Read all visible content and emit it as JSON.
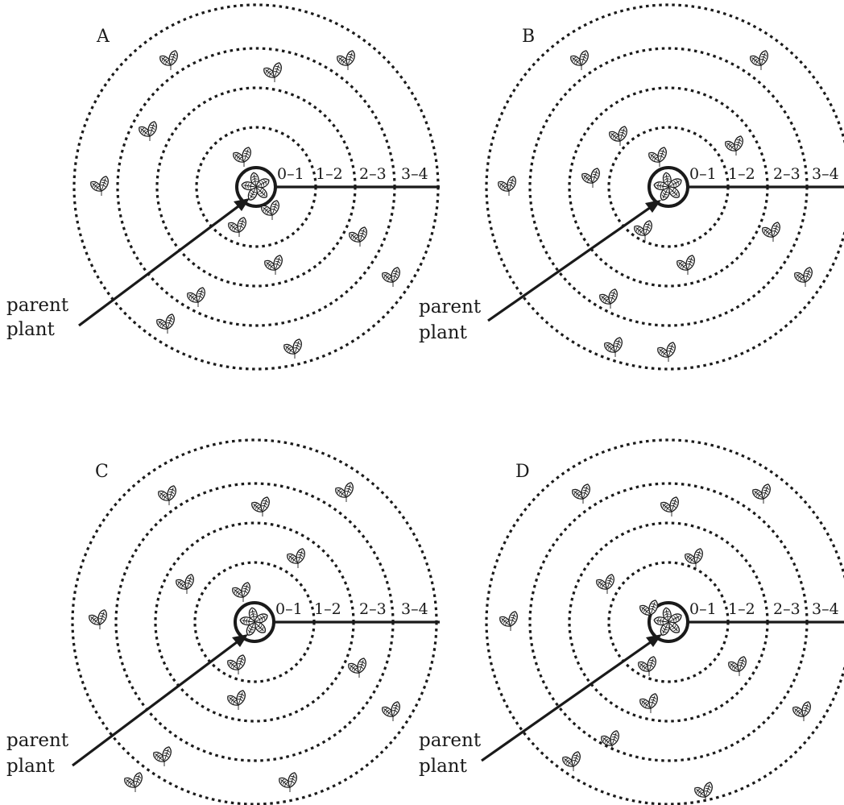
{
  "panels": [
    {
      "letter": "A",
      "distance_bands": [
        "0–1",
        "1–2",
        "2–3",
        "3–4"
      ],
      "parent_label_line1": "parent",
      "parent_label_line2": "plant",
      "seedlings_per_band": [
        3,
        3,
        4,
        4
      ]
    },
    {
      "letter": "B",
      "distance_bands": [
        "0–1",
        "1–2",
        "2–3",
        "3–4"
      ],
      "parent_label_line1": "parent",
      "parent_label_line2": "plant",
      "seedlings_per_band": [
        3,
        4,
        3,
        4
      ]
    },
    {
      "letter": "C",
      "distance_bands": [
        "0–1",
        "1–2",
        "2–3",
        "3–4"
      ],
      "parent_label_line1": "parent",
      "parent_label_line2": "plant",
      "seedlings_per_band": [
        3,
        3,
        3,
        5
      ]
    },
    {
      "letter": "D",
      "distance_bands": [
        "0–1",
        "1–2",
        "2–3",
        "3–4"
      ],
      "parent_label_line1": "parent",
      "parent_label_line2": "plant",
      "seedlings_per_band": [
        3,
        4,
        4,
        4
      ]
    }
  ]
}
